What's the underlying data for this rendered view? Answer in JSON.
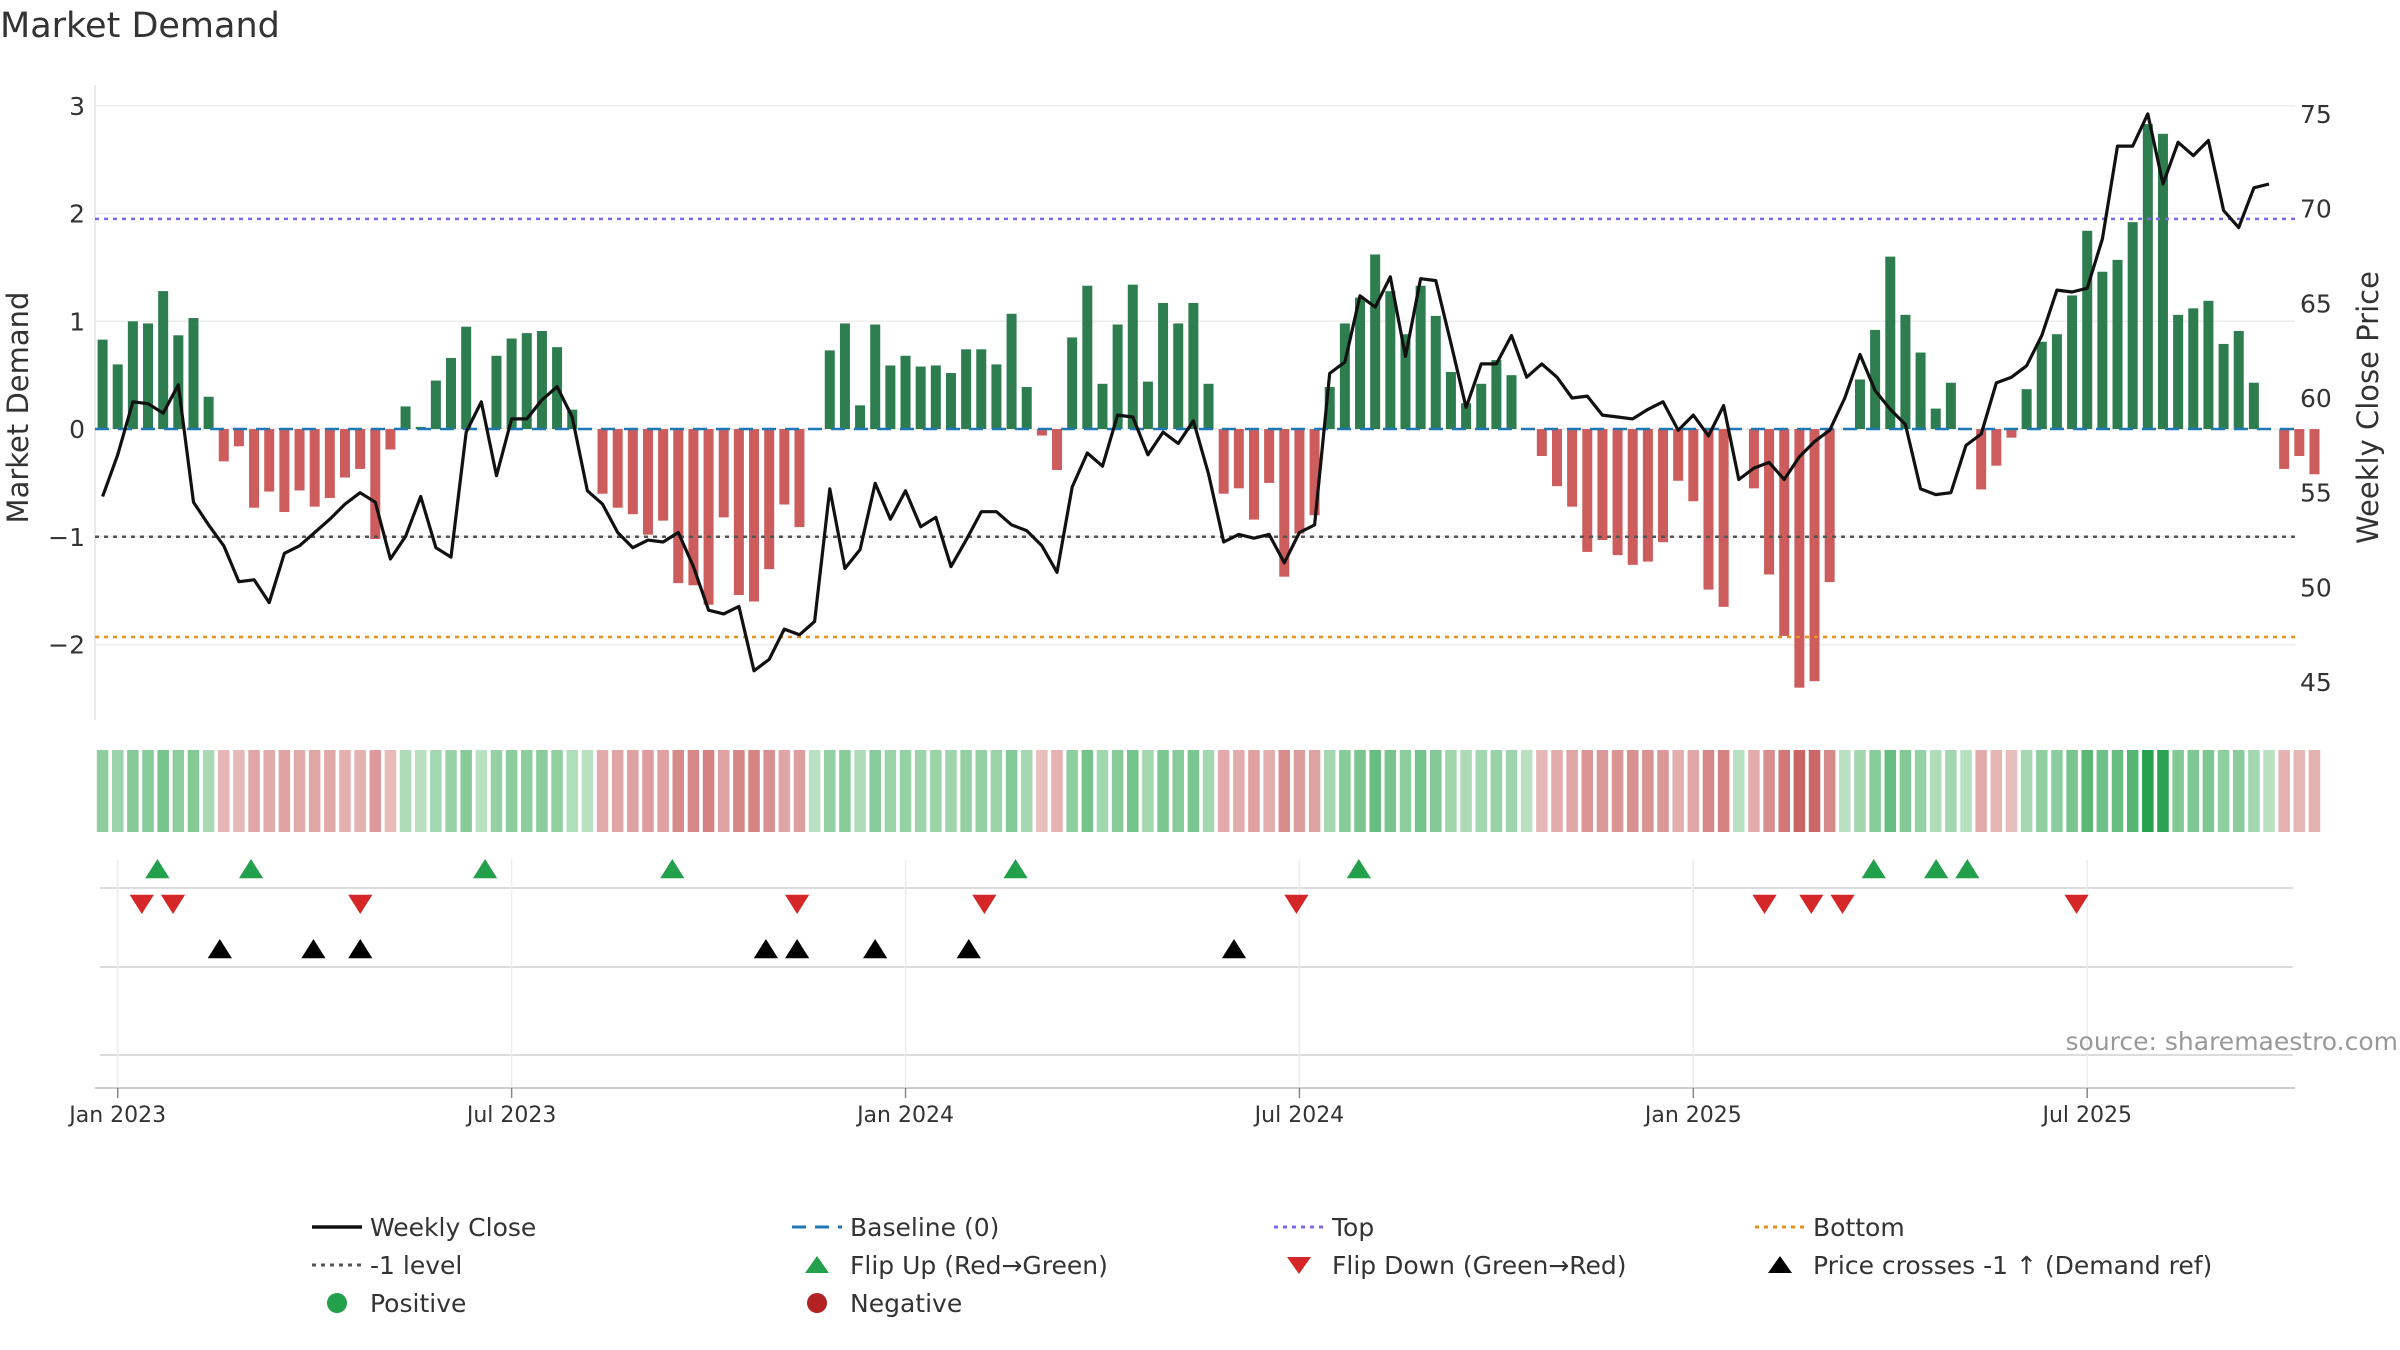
{
  "chart_data": {
    "type": "bar",
    "title": "Market Demand",
    "ylabel_left": "Market Demand",
    "ylabel_right": "Weekly Close Price",
    "ylim_left": [
      -2.7,
      3.1
    ],
    "ylim_right": [
      43,
      76
    ],
    "yticks_left": [
      3,
      2,
      1,
      0,
      -1,
      -2
    ],
    "ytick_labels_left": [
      "3",
      "2",
      "1",
      "0",
      "−1",
      "−2"
    ],
    "yticks_right": [
      75,
      70,
      65,
      60,
      55,
      50,
      45
    ],
    "xtick_labels": [
      "Jan 2023",
      "Jul 2023",
      "Jan 2024",
      "Jul 2024",
      "Jan 2025",
      "Jul 2025"
    ],
    "xtick_weeks": [
      1,
      27,
      53,
      79,
      105,
      131
    ],
    "reference_lines": {
      "baseline": 0,
      "minus_one": -1,
      "top": 1.95,
      "bottom": -1.93
    },
    "colors": {
      "positive": "#2e7d4f",
      "negative": "#cd5c5c",
      "close": "#111111",
      "baseline": "#1f77b4",
      "top": "#7b68ee",
      "bottom": "#e69119",
      "minus_one": "#555555",
      "flip_up": "#22a04b",
      "flip_down": "#d62728",
      "cross": "#000000"
    },
    "series": [
      {
        "name": "Market Demand",
        "values": [
          0.83,
          0.6,
          1.0,
          0.98,
          1.28,
          0.87,
          1.03,
          0.3,
          -0.3,
          -0.16,
          -0.73,
          -0.58,
          -0.77,
          -0.57,
          -0.72,
          -0.64,
          -0.45,
          -0.37,
          -1.02,
          -0.19,
          0.21,
          0.02,
          0.45,
          0.66,
          0.95,
          0.0,
          0.68,
          0.84,
          0.89,
          0.91,
          0.76,
          0.18,
          0.0,
          -0.6,
          -0.73,
          -0.79,
          -0.98,
          -0.85,
          -1.43,
          -1.45,
          -1.63,
          -0.82,
          -1.54,
          -1.6,
          -1.3,
          -0.7,
          -0.91,
          0.0,
          0.73,
          0.98,
          0.22,
          0.97,
          0.59,
          0.68,
          0.58,
          0.59,
          0.52,
          0.74,
          0.74,
          0.6,
          1.07,
          0.39,
          -0.06,
          -0.38,
          0.85,
          1.33,
          0.42,
          0.97,
          1.34,
          0.44,
          1.17,
          0.98,
          1.17,
          0.42,
          -0.6,
          -0.55,
          -0.84,
          -0.5,
          -1.37,
          -0.97,
          -0.8,
          0.39,
          0.98,
          1.22,
          1.62,
          1.28,
          0.88,
          1.33,
          1.05,
          0.53,
          0.24,
          0.42,
          0.64,
          0.5,
          0.0,
          -0.25,
          -0.53,
          -0.72,
          -1.14,
          -1.03,
          -1.17,
          -1.26,
          -1.23,
          -1.05,
          -0.48,
          -0.67,
          -1.49,
          -1.65,
          0.0,
          -0.55,
          -1.35,
          -1.92,
          -2.4,
          -2.34,
          -1.42,
          0.0,
          0.46,
          0.92,
          1.6,
          1.06,
          0.71,
          0.19,
          0.43,
          0.0,
          -0.56,
          -0.34,
          -0.08,
          0.37,
          0.81,
          0.88,
          1.24,
          1.84,
          1.46,
          1.57,
          1.92,
          2.83,
          2.74,
          1.06,
          1.12,
          1.19,
          0.79,
          0.91,
          0.43,
          0.0,
          -0.37,
          -0.25,
          -0.42
        ]
      },
      {
        "name": "Weekly Close",
        "values": [
          54.8,
          57.0,
          59.8,
          59.7,
          59.2,
          60.7,
          54.5,
          53.3,
          52.2,
          50.3,
          50.4,
          49.2,
          51.8,
          52.2,
          52.9,
          53.6,
          54.4,
          55.0,
          54.5,
          51.5,
          52.7,
          54.8,
          52.1,
          51.6,
          58.2,
          59.8,
          55.9,
          58.9,
          58.9,
          59.9,
          60.6,
          59.0,
          55.1,
          54.4,
          52.9,
          52.1,
          52.5,
          52.4,
          52.9,
          51.1,
          48.8,
          48.6,
          49.0,
          45.6,
          46.2,
          47.8,
          47.5,
          48.2,
          55.2,
          51.0,
          52.0,
          55.5,
          53.6,
          55.1,
          53.2,
          53.7,
          51.1,
          52.5,
          54.0,
          54.0,
          53.3,
          53.0,
          52.2,
          50.8,
          55.3,
          57.1,
          56.4,
          59.1,
          59.0,
          57.0,
          58.2,
          57.6,
          58.8,
          56.0,
          52.4,
          52.8,
          52.6,
          52.8,
          51.3,
          52.9,
          53.3,
          61.3,
          61.9,
          65.4,
          64.8,
          66.4,
          62.2,
          66.3,
          66.2,
          62.9,
          59.5,
          61.8,
          61.8,
          63.3,
          61.1,
          61.8,
          61.1,
          60.0,
          60.1,
          59.1,
          59.0,
          58.9,
          59.4,
          59.8,
          58.3,
          59.1,
          58.0,
          59.6,
          55.7,
          56.3,
          56.6,
          55.7,
          56.9,
          57.7,
          58.3,
          60.0,
          62.3,
          60.4,
          59.4,
          58.6,
          55.2,
          54.9,
          55.0,
          57.5,
          58.1,
          60.8,
          61.1,
          61.7,
          63.3,
          65.7,
          65.6,
          65.8,
          68.4,
          73.3,
          73.3,
          75.0,
          71.3,
          73.5,
          72.8,
          73.6,
          69.9,
          69.0,
          71.1,
          71.3
        ]
      }
    ],
    "flip_up_weeks": [
      4,
      10,
      25,
      37,
      59,
      81,
      114,
      118,
      120
    ],
    "flip_down_weeks": [
      3,
      5,
      17,
      45,
      57,
      77,
      107,
      110,
      112,
      127
    ],
    "cross_weeks": [
      8,
      14,
      17,
      43,
      45,
      50,
      56,
      73
    ],
    "watermark": "source: sharemaestro.com"
  },
  "legend": [
    {
      "id": "weekly-close",
      "label": "Weekly Close",
      "symbol": "line-solid",
      "color": "#111111"
    },
    {
      "id": "baseline",
      "label": "Baseline (0)",
      "symbol": "line-dash",
      "color": "#1f77b4"
    },
    {
      "id": "top",
      "label": "Top",
      "symbol": "line-dot",
      "color": "#7b68ee"
    },
    {
      "id": "bottom",
      "label": "Bottom",
      "symbol": "line-dot",
      "color": "#e69119"
    },
    {
      "id": "minus-one",
      "label": "-1 level",
      "symbol": "line-dot",
      "color": "#555555"
    },
    {
      "id": "flip-up",
      "label": "Flip Up (Red→Green)",
      "symbol": "tri-up",
      "color": "#22a04b"
    },
    {
      "id": "flip-down",
      "label": "Flip Down (Green→Red)",
      "symbol": "tri-down",
      "color": "#d62728"
    },
    {
      "id": "price-cross",
      "label": "Price crosses -1 ↑ (Demand ref)",
      "symbol": "tri-up",
      "color": "#000000"
    },
    {
      "id": "positive",
      "label": "Positive",
      "symbol": "dot",
      "color": "#22a04b"
    },
    {
      "id": "negative",
      "label": "Negative",
      "symbol": "dot",
      "color": "#b22222"
    }
  ]
}
